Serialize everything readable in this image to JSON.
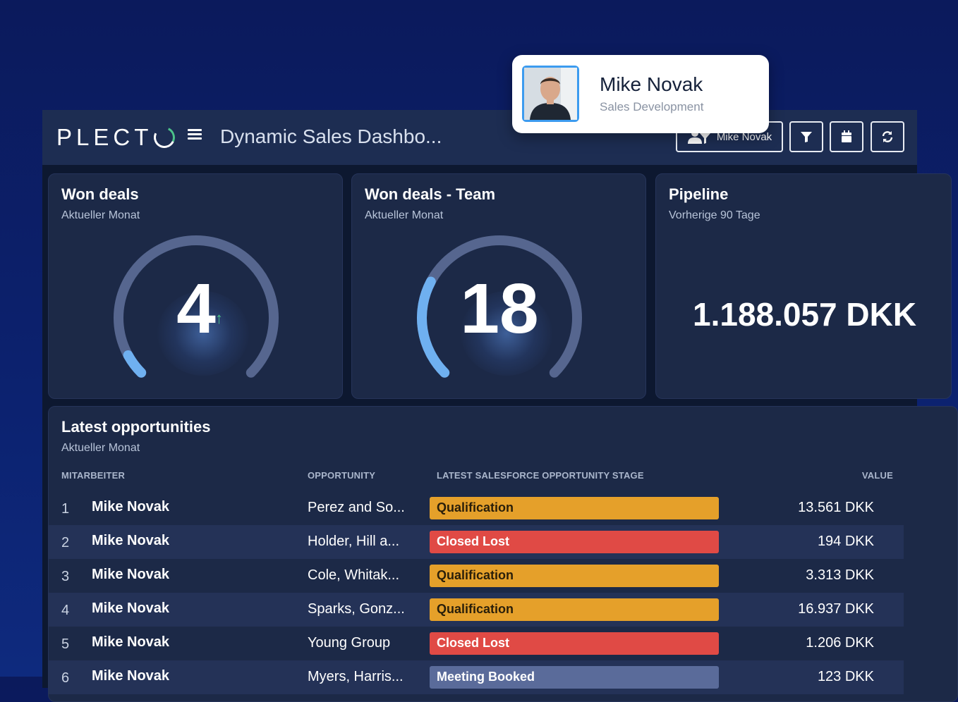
{
  "app": {
    "logo": "PLECT",
    "dashboard_title": "Dynamic Sales Dashbo...",
    "user_filter_label": "Mike Novak"
  },
  "profile": {
    "name": "Mike Novak",
    "role": "Sales Development"
  },
  "cards": {
    "won_deals": {
      "title": "Won deals",
      "subtitle": "Aktueller Monat",
      "value": "4",
      "trend": "↑",
      "fill": 0.06
    },
    "won_deals_team": {
      "title": "Won deals - Team",
      "subtitle": "Aktueller Monat",
      "value": "18",
      "fill": 0.27
    },
    "pipeline": {
      "title": "Pipeline",
      "subtitle": "Vorherige 90 Tage",
      "value": "1.188.057 DKK"
    }
  },
  "table": {
    "title": "Latest opportunities",
    "subtitle": "Aktueller Monat",
    "headers": {
      "employee": "MITARBEITER",
      "opportunity": "OPPORTUNITY",
      "stage": "LATEST SALESFORCE OPPORTUNITY STAGE",
      "value": "VALUE"
    },
    "rows": [
      {
        "rank": "1",
        "employee": "Mike Novak",
        "opportunity": "Perez and So...",
        "stage": "Qualification",
        "value": "13.561 DKK"
      },
      {
        "rank": "2",
        "employee": "Mike Novak",
        "opportunity": "Holder, Hill a...",
        "stage": "Closed Lost",
        "value": "194 DKK"
      },
      {
        "rank": "3",
        "employee": "Mike Novak",
        "opportunity": "Cole, Whitak...",
        "stage": "Qualification",
        "value": "3.313 DKK"
      },
      {
        "rank": "4",
        "employee": "Mike Novak",
        "opportunity": "Sparks, Gonz...",
        "stage": "Qualification",
        "value": "16.937 DKK"
      },
      {
        "rank": "5",
        "employee": "Mike Novak",
        "opportunity": "Young Group",
        "stage": "Closed Lost",
        "value": "1.206 DKK"
      },
      {
        "rank": "6",
        "employee": "Mike Novak",
        "opportunity": "Myers, Harris...",
        "stage": "Meeting Booked",
        "value": "123 DKK"
      }
    ]
  },
  "colors": {
    "qualification": "#e5a02a",
    "closed_lost": "#e04a45",
    "meeting_booked": "#5a6b9a",
    "gauge_track": "#56668f",
    "gauge_fill": "#6fb0f0"
  },
  "icons": {
    "menu": "hamburger-icon",
    "user": "user-group-icon",
    "filter": "filter-icon",
    "calendar": "calendar-icon",
    "refresh": "refresh-icon"
  }
}
